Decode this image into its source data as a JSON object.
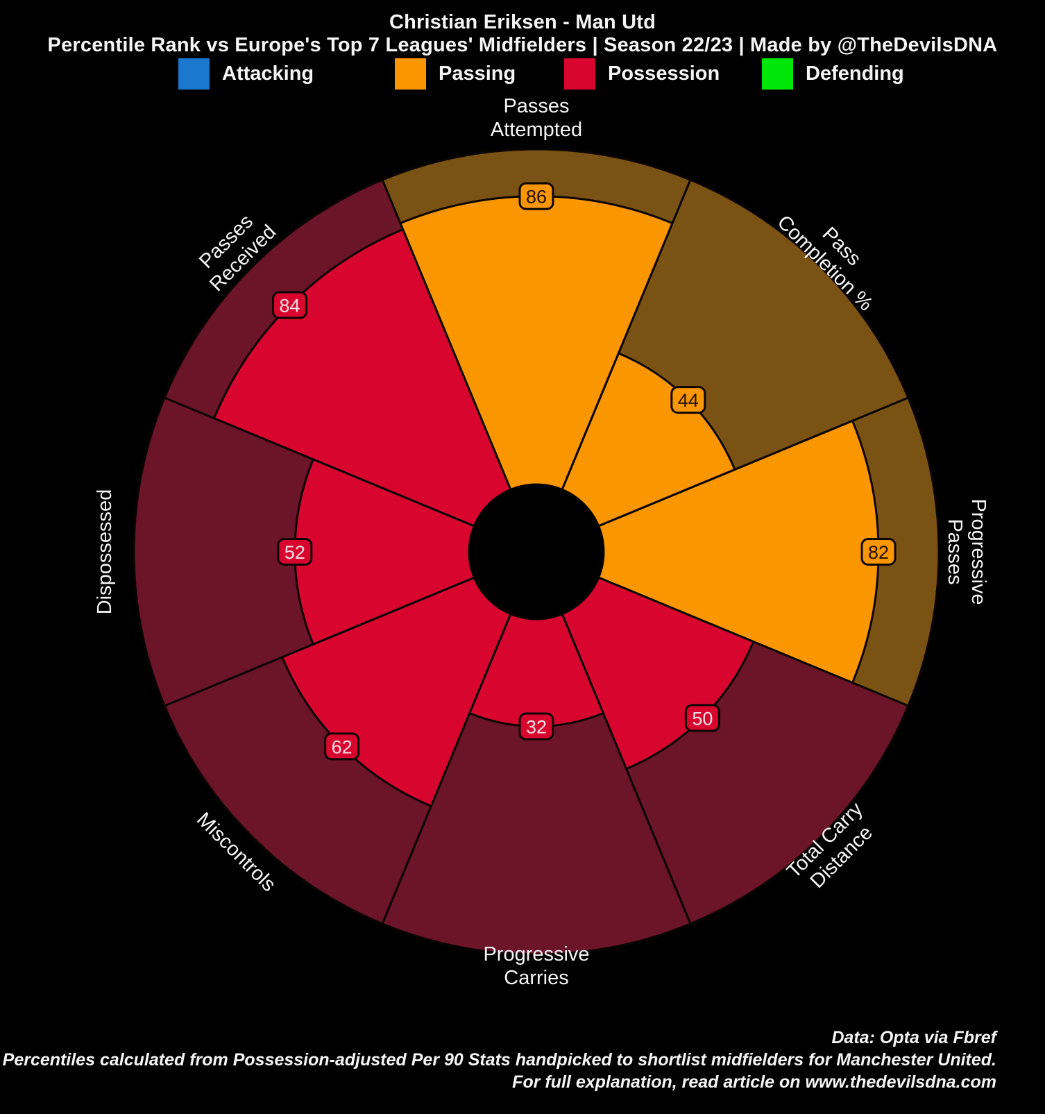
{
  "header": {
    "title": "Christian Eriksen - Man Utd",
    "subtitle": "Percentile Rank vs Europe's Top 7 Leagues' Midfielders | Season 22/23 | Made by @TheDevilsDNA"
  },
  "legend": [
    {
      "label": "Attacking",
      "color": "#1A78CF"
    },
    {
      "label": "Passing",
      "color": "#FA9600"
    },
    {
      "label": "Possession",
      "color": "#D8062F"
    },
    {
      "label": "Defending",
      "color": "#00E606"
    }
  ],
  "theme": {
    "background": "#000000",
    "text": "#F5F5F5",
    "passing": "#FA9600",
    "passing_dark": "#7A5214",
    "possession": "#D8062F",
    "possession_dark": "#6C1428",
    "attacking": "#1A78CF",
    "defending": "#00E606",
    "outline": "#0A0502",
    "badge_text_passing": "#221200",
    "badge_text_possession": "#F6E0E4"
  },
  "chart_data": {
    "type": "pie",
    "variant": "pizza-percentile-rank",
    "title": "Christian Eriksen - Man Utd",
    "value_range": [
      0,
      100
    ],
    "categories": [
      "Passes Attempted",
      "Pass Completion %",
      "Progressive Passes",
      "Total Carry Distance",
      "Progressive Carries",
      "Miscontrols",
      "Dispossessed",
      "Passes Received"
    ],
    "values": [
      86,
      44,
      82,
      50,
      32,
      62,
      52,
      84
    ],
    "groups": [
      "Passing",
      "Passing",
      "Passing",
      "Possession",
      "Possession",
      "Possession",
      "Possession",
      "Possession"
    ],
    "slices": [
      {
        "label": "Passes\nAttempted",
        "value": 86,
        "group": "Passing"
      },
      {
        "label": "Pass\nCompletion %",
        "value": 44,
        "group": "Passing"
      },
      {
        "label": "Progressive\nPasses",
        "value": 82,
        "group": "Passing"
      },
      {
        "label": "Total Carry\nDistance",
        "value": 50,
        "group": "Possession"
      },
      {
        "label": "Progressive\nCarries",
        "value": 32,
        "group": "Possession"
      },
      {
        "label": "Miscontrols",
        "value": 62,
        "group": "Possession"
      },
      {
        "label": "Dispossessed",
        "value": 52,
        "group": "Possession"
      },
      {
        "label": "Passes\nReceived",
        "value": 84,
        "group": "Possession"
      }
    ]
  },
  "footer": {
    "line1": "Data: Opta via Fbref",
    "line2": "Percentiles calculated from Possession-adjusted Per 90 Stats handpicked to shortlist midfielders for Manchester United.",
    "line3": "For full explanation, read article on www.thedevilsdna.com"
  }
}
